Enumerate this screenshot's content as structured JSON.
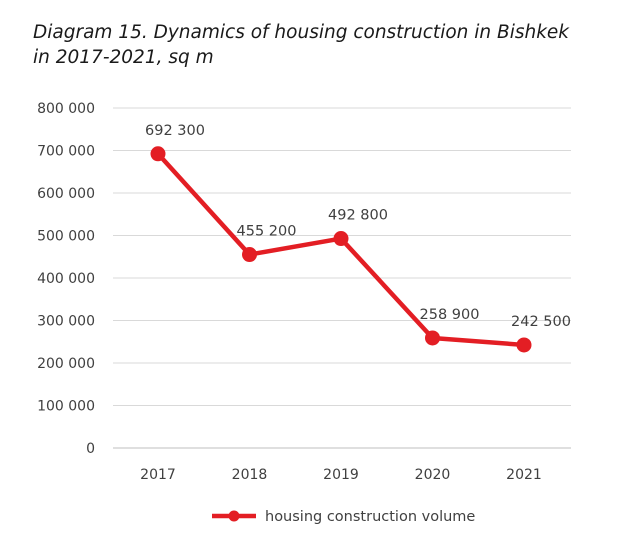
{
  "chart_data": {
    "type": "line",
    "title_line1": "Diagram 15. Dynamics of housing construction in Bishkek",
    "title_line2": "in 2017-2021, sq m",
    "categories": [
      "2017",
      "2018",
      "2019",
      "2020",
      "2021"
    ],
    "y_ticks": [
      "0",
      "100 000",
      "200 000",
      "300 000",
      "400 000",
      "500 000",
      "600 000",
      "700 000",
      "800 000"
    ],
    "ylim": [
      0,
      800000
    ],
    "grid": true,
    "legend_position": "bottom",
    "series": [
      {
        "name": "housing construction volume",
        "color": "#e31e24",
        "values": [
          692300,
          455200,
          492800,
          258900,
          242500
        ],
        "labels": [
          "692 300",
          "455 200",
          "492 800",
          "258 900",
          "242 500"
        ]
      }
    ]
  }
}
